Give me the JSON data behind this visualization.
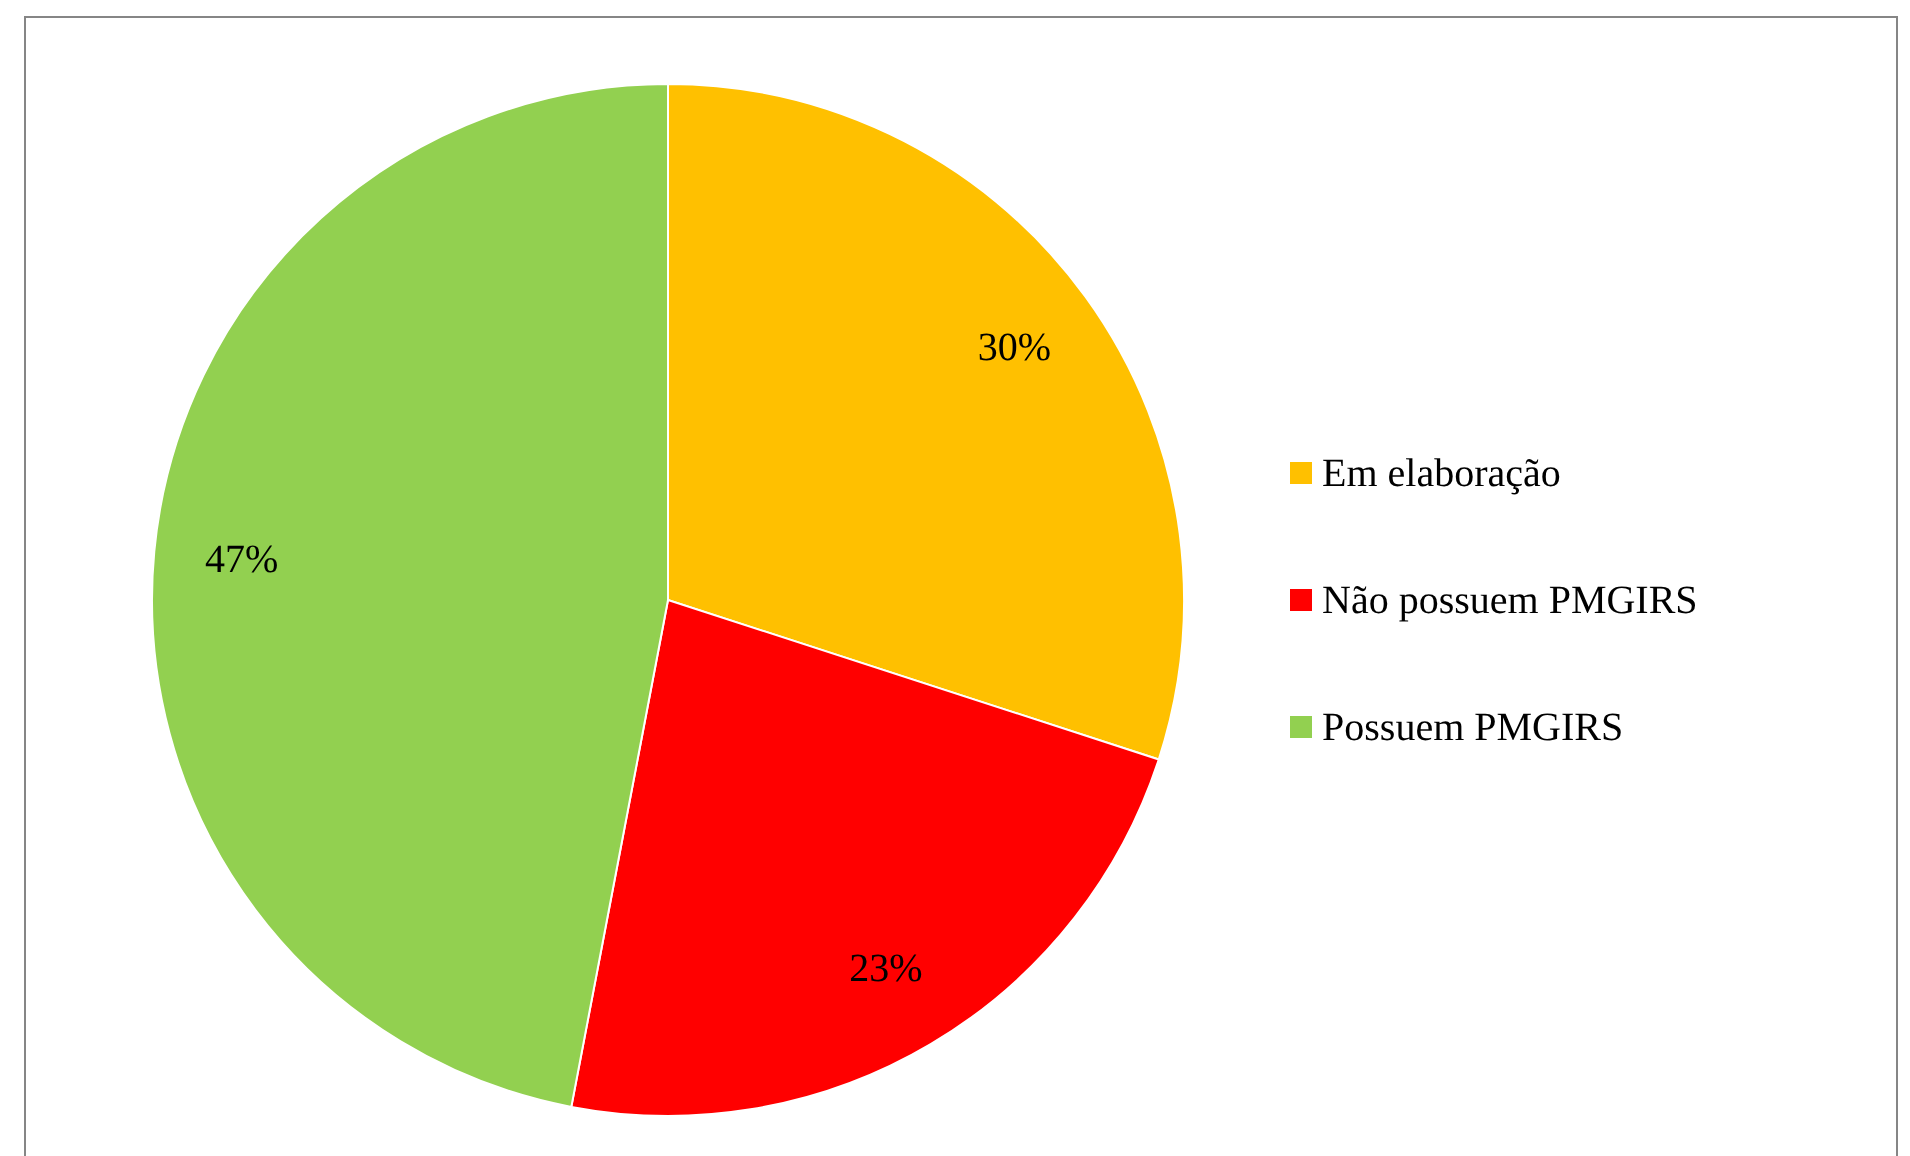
{
  "chart_data": {
    "type": "pie",
    "categories": [
      "Em elaboração",
      "Não possuem PMGIRS",
      "Possuem PMGIRS"
    ],
    "values": [
      30,
      23,
      47
    ],
    "colors": [
      "#ffc000",
      "#ff0000",
      "#92d050"
    ],
    "value_labels": [
      "30%",
      "23%",
      "47%"
    ],
    "legend": "right"
  }
}
